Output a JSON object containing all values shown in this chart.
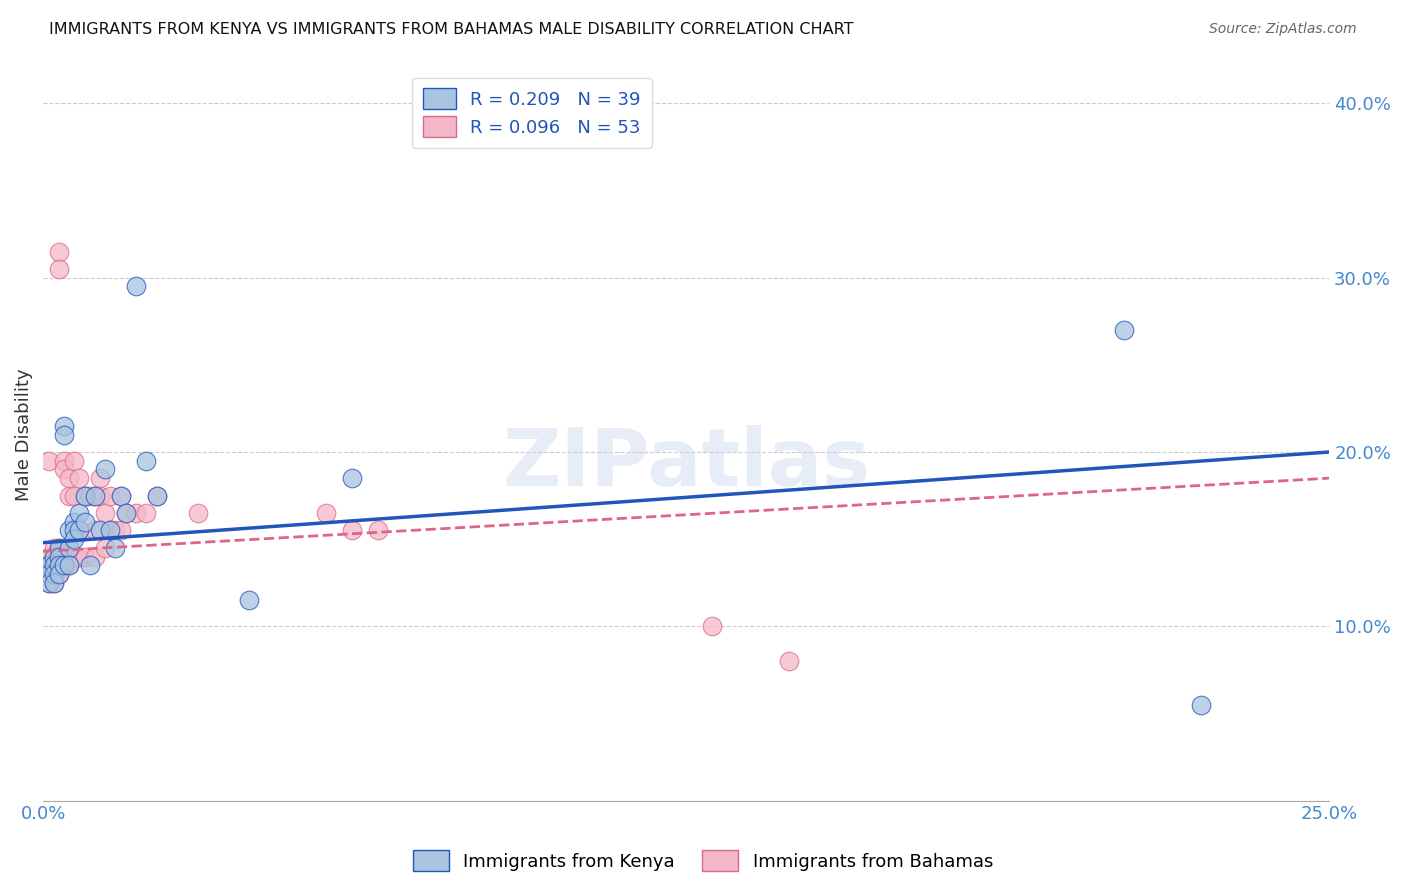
{
  "title": "IMMIGRANTS FROM KENYA VS IMMIGRANTS FROM BAHAMAS MALE DISABILITY CORRELATION CHART",
  "source": "Source: ZipAtlas.com",
  "ylabel": "Male Disability",
  "xlim": [
    0.0,
    0.25
  ],
  "ylim": [
    0.0,
    0.42
  ],
  "color_kenya": "#a8c4e0",
  "color_bahamas": "#f4b8c8",
  "line_color_kenya": "#2255bb",
  "line_color_bahamas": "#dd6688",
  "watermark": "ZIPatlas",
  "background_color": "#ffffff",
  "grid_color": "#cccccc",
  "kenya_x": [
    0.001,
    0.001,
    0.001,
    0.002,
    0.002,
    0.002,
    0.002,
    0.003,
    0.003,
    0.003,
    0.003,
    0.004,
    0.004,
    0.004,
    0.005,
    0.005,
    0.005,
    0.006,
    0.006,
    0.006,
    0.007,
    0.007,
    0.008,
    0.008,
    0.009,
    0.01,
    0.011,
    0.012,
    0.013,
    0.014,
    0.015,
    0.016,
    0.018,
    0.02,
    0.022,
    0.04,
    0.06,
    0.21,
    0.225
  ],
  "kenya_y": [
    0.135,
    0.13,
    0.125,
    0.14,
    0.135,
    0.13,
    0.125,
    0.145,
    0.14,
    0.135,
    0.13,
    0.215,
    0.21,
    0.135,
    0.155,
    0.145,
    0.135,
    0.16,
    0.155,
    0.15,
    0.165,
    0.155,
    0.175,
    0.16,
    0.135,
    0.175,
    0.155,
    0.19,
    0.155,
    0.145,
    0.175,
    0.165,
    0.295,
    0.195,
    0.175,
    0.115,
    0.185,
    0.27,
    0.055
  ],
  "bahamas_x": [
    0.001,
    0.001,
    0.001,
    0.001,
    0.001,
    0.002,
    0.002,
    0.002,
    0.002,
    0.002,
    0.003,
    0.003,
    0.003,
    0.003,
    0.004,
    0.004,
    0.004,
    0.004,
    0.005,
    0.005,
    0.005,
    0.005,
    0.006,
    0.006,
    0.006,
    0.007,
    0.007,
    0.007,
    0.008,
    0.008,
    0.009,
    0.01,
    0.01,
    0.01,
    0.011,
    0.011,
    0.012,
    0.012,
    0.013,
    0.013,
    0.014,
    0.015,
    0.015,
    0.016,
    0.018,
    0.02,
    0.022,
    0.03,
    0.055,
    0.06,
    0.065,
    0.13,
    0.145
  ],
  "bahamas_y": [
    0.14,
    0.135,
    0.13,
    0.125,
    0.195,
    0.145,
    0.14,
    0.135,
    0.13,
    0.125,
    0.315,
    0.305,
    0.145,
    0.13,
    0.195,
    0.19,
    0.145,
    0.135,
    0.185,
    0.175,
    0.145,
    0.135,
    0.195,
    0.175,
    0.14,
    0.185,
    0.155,
    0.14,
    0.175,
    0.14,
    0.175,
    0.175,
    0.155,
    0.14,
    0.185,
    0.175,
    0.165,
    0.145,
    0.175,
    0.155,
    0.155,
    0.175,
    0.155,
    0.165,
    0.165,
    0.165,
    0.175,
    0.165,
    0.165,
    0.155,
    0.155,
    0.1,
    0.08
  ],
  "kenya_line_x0": 0.0,
  "kenya_line_y0": 0.148,
  "kenya_line_x1": 0.25,
  "kenya_line_y1": 0.2,
  "bahamas_line_x0": 0.0,
  "bahamas_line_y0": 0.143,
  "bahamas_line_x1": 0.25,
  "bahamas_line_y1": 0.185
}
